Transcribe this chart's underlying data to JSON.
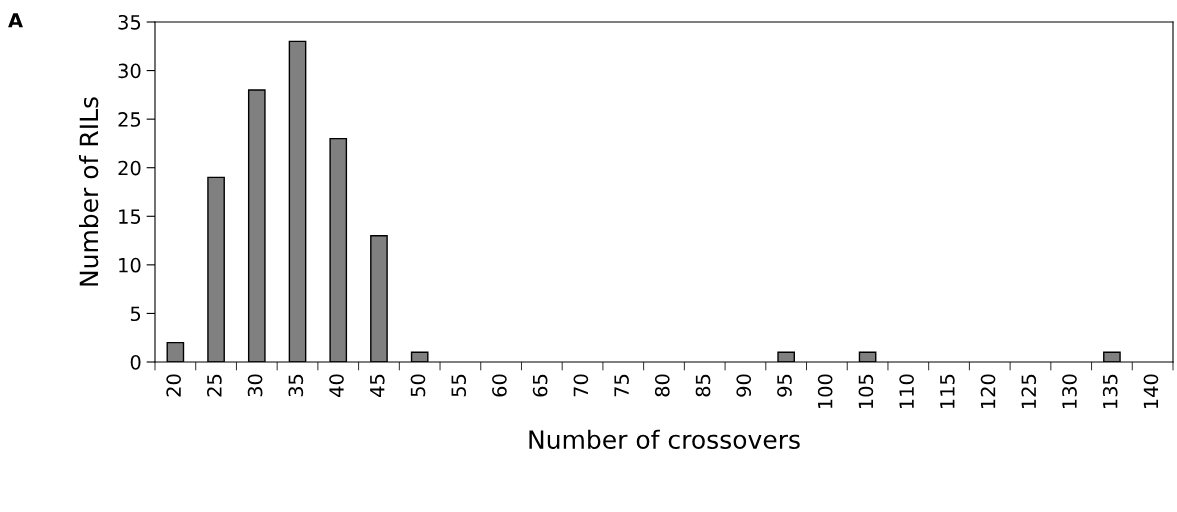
{
  "chart_data": {
    "type": "bar",
    "xlabel": "Number of crossovers",
    "ylabel": "Number of RILs",
    "categories": [
      "20",
      "25",
      "30",
      "35",
      "40",
      "45",
      "50",
      "55",
      "60",
      "65",
      "70",
      "75",
      "80",
      "85",
      "90",
      "95",
      "100",
      "105",
      "110",
      "115",
      "120",
      "125",
      "130",
      "135",
      "140"
    ],
    "values": [
      2,
      19,
      28,
      33,
      23,
      13,
      1,
      0,
      0,
      0,
      0,
      0,
      0,
      0,
      0,
      1,
      0,
      1,
      0,
      0,
      0,
      0,
      0,
      1,
      0
    ],
    "color": "#808080",
    "ylim": [
      0,
      35
    ],
    "yticks": [
      0,
      5,
      10,
      15,
      20,
      25,
      30,
      35
    ],
    "grid": false,
    "annotations": [
      "A"
    ]
  }
}
